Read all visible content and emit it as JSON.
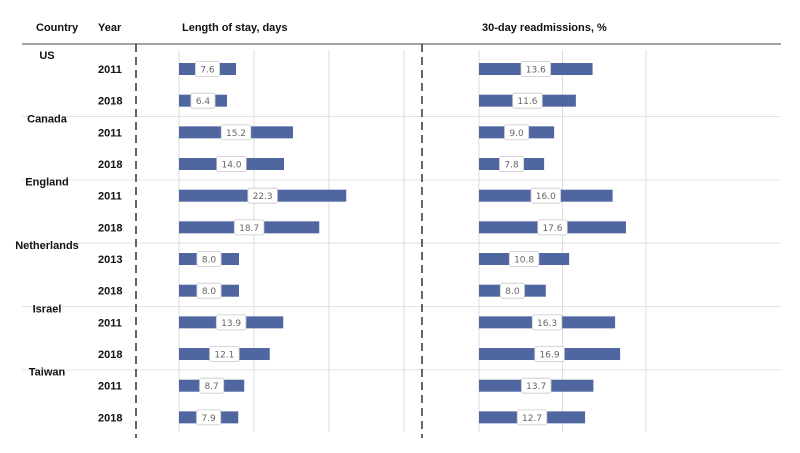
{
  "headers": {
    "country": "Country",
    "year": "Year",
    "left_panel": "Length of stay, days",
    "right_panel": "30-day readmissions, %"
  },
  "colors": {
    "bar": "#4f66a0",
    "grid": "#dcdcdc",
    "separator": "#e2e2e2",
    "axis": "#444444",
    "dash": "#333333"
  },
  "chart_data": {
    "type": "bar",
    "orientation": "horizontal",
    "grid": true,
    "groups": [
      {
        "country": "US",
        "rows": [
          {
            "year": "2011",
            "los": 7.6,
            "readm": 13.6
          },
          {
            "year": "2018",
            "los": 6.4,
            "readm": 11.6
          }
        ]
      },
      {
        "country": "Canada",
        "rows": [
          {
            "year": "2011",
            "los": 15.2,
            "readm": 9.0
          },
          {
            "year": "2018",
            "los": 14.0,
            "readm": 7.8
          }
        ]
      },
      {
        "country": "England",
        "rows": [
          {
            "year": "2011",
            "los": 22.3,
            "readm": 16.0
          },
          {
            "year": "2018",
            "los": 18.7,
            "readm": 17.6
          }
        ]
      },
      {
        "country": "Netherlands",
        "rows": [
          {
            "year": "2013",
            "los": 8.0,
            "readm": 10.8
          },
          {
            "year": "2018",
            "los": 8.0,
            "readm": 8.0
          }
        ]
      },
      {
        "country": "Israel",
        "rows": [
          {
            "year": "2011",
            "los": 13.9,
            "readm": 16.3
          },
          {
            "year": "2018",
            "los": 12.1,
            "readm": 16.9
          }
        ]
      },
      {
        "country": "Taiwan",
        "rows": [
          {
            "year": "2011",
            "los": 8.7,
            "readm": 13.7
          },
          {
            "year": "2018",
            "los": 7.9,
            "readm": 12.7
          }
        ]
      }
    ],
    "panels": [
      {
        "key": "los",
        "xlim": [
          0,
          30
        ],
        "gridlines": [
          0,
          10,
          20,
          30
        ]
      },
      {
        "key": "readm",
        "xlim": [
          0,
          20
        ],
        "gridlines": [
          0,
          10,
          20
        ]
      }
    ]
  }
}
